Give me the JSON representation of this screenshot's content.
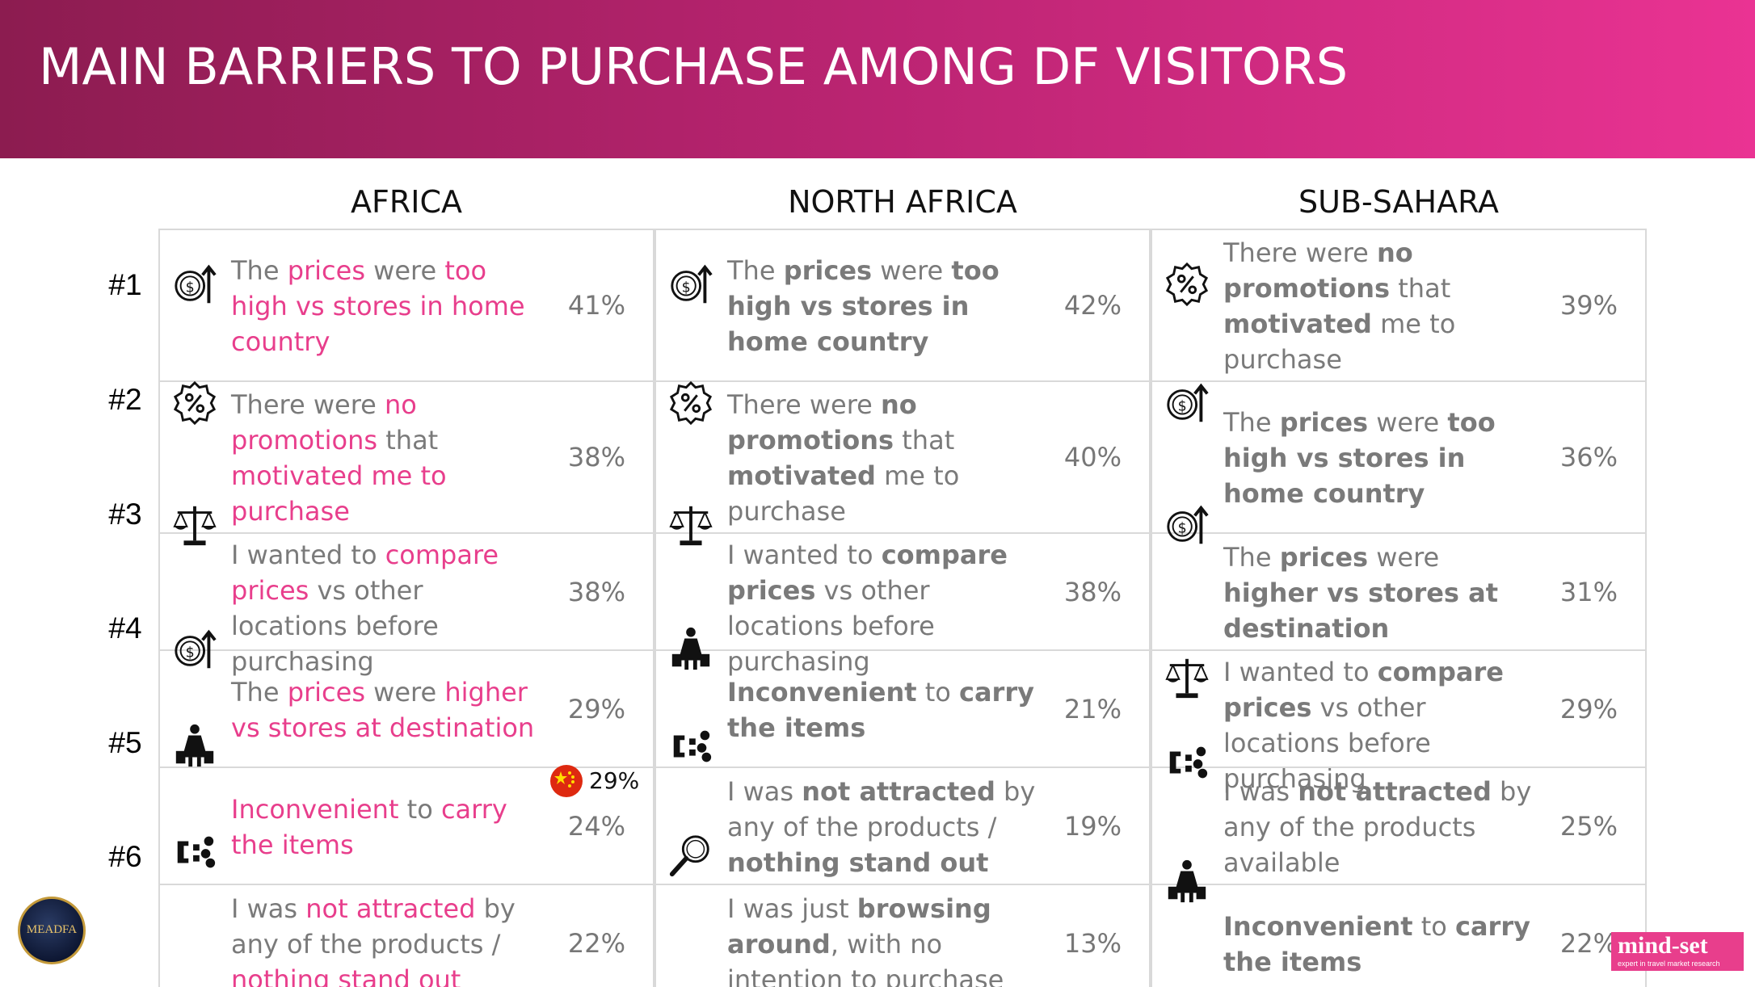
{
  "title": "MAIN BARRIERS TO PURCHASE AMONG DF VISITORS",
  "regions": [
    "AFRICA",
    "NORTH AFRICA",
    "SUB-SAHARA"
  ],
  "ranks": [
    "#1",
    "#2",
    "#3",
    "#4",
    "#5",
    "#6"
  ],
  "columns": [
    {
      "name": "AFRICA",
      "rows": [
        {
          "icon": "price-up-icon",
          "pct": "41%",
          "segments": [
            [
              "The ",
              "n"
            ],
            [
              "prices",
              "h"
            ],
            [
              " were ",
              "n"
            ],
            [
              "too high vs stores in home country",
              "h"
            ]
          ]
        },
        {
          "icon": "promotion-icon",
          "pct": "38%",
          "segments": [
            [
              "There were ",
              "n"
            ],
            [
              "no promotions",
              "h"
            ],
            [
              " that ",
              "n"
            ],
            [
              "motivated",
              "h"
            ],
            [
              " me to purchase",
              "h2"
            ]
          ]
        },
        {
          "icon": "scale-icon",
          "pct": "38%",
          "segments": [
            [
              "I wanted to ",
              "n"
            ],
            [
              "compare prices",
              "h"
            ],
            [
              " vs other locations before purchasing",
              "n"
            ]
          ]
        },
        {
          "icon": "price-up-icon",
          "pct": "29%",
          "segments": [
            [
              "The ",
              "n"
            ],
            [
              "prices",
              "h"
            ],
            [
              " were ",
              "n"
            ],
            [
              "higher vs stores at destination",
              "h"
            ]
          ]
        },
        {
          "icon": "carry-icon",
          "pct": "24%",
          "segments": [
            [
              "Inconvenient",
              "h"
            ],
            [
              " to ",
              "n"
            ],
            [
              "carry the items",
              "h"
            ]
          ]
        },
        {
          "icon": "magnet-icon",
          "pct": "22%",
          "segments": [
            [
              "I was ",
              "n"
            ],
            [
              "not attracted",
              "h"
            ],
            [
              " by any of the products / ",
              "n"
            ],
            [
              "nothing stand out",
              "h"
            ]
          ]
        }
      ]
    },
    {
      "name": "NORTH AFRICA",
      "rows": [
        {
          "icon": "price-up-icon",
          "pct": "42%",
          "segments": [
            [
              "The ",
              "n"
            ],
            [
              "prices",
              "b"
            ],
            [
              " were ",
              "n"
            ],
            [
              "too high vs stores in home country",
              "b"
            ]
          ]
        },
        {
          "icon": "promotion-icon",
          "pct": "40%",
          "segments": [
            [
              "There were ",
              "n"
            ],
            [
              "no promotions",
              "b"
            ],
            [
              " that ",
              "n"
            ],
            [
              "motivated",
              "b"
            ],
            [
              " me to purchase",
              "n"
            ]
          ]
        },
        {
          "icon": "scale-icon",
          "pct": "38%",
          "segments": [
            [
              "I wanted to ",
              "n"
            ],
            [
              "compare prices",
              "b"
            ],
            [
              " vs other locations before purchasing",
              "n"
            ]
          ]
        },
        {
          "icon": "carry-icon",
          "pct": "21%",
          "segments": [
            [
              "Inconvenient",
              "b"
            ],
            [
              " to ",
              "n"
            ],
            [
              "carry the items",
              "b"
            ]
          ]
        },
        {
          "icon": "magnet-icon",
          "pct": "19%",
          "segments": [
            [
              "I was ",
              "n"
            ],
            [
              "not attracted",
              "b"
            ],
            [
              " by any of the products / ",
              "n"
            ],
            [
              "nothing stand out",
              "b"
            ]
          ]
        },
        {
          "icon": "browse-icon",
          "pct": "13%",
          "segments": [
            [
              "I was just ",
              "n"
            ],
            [
              "browsing around",
              "b"
            ],
            [
              ", with no intention to purchase",
              "n"
            ]
          ]
        }
      ]
    },
    {
      "name": "SUB-SAHARA",
      "rows": [
        {
          "icon": "promotion-icon",
          "pct": "39%",
          "segments": [
            [
              "There were ",
              "n"
            ],
            [
              "no promotions",
              "b"
            ],
            [
              " that ",
              "n"
            ],
            [
              "motivated",
              "b"
            ],
            [
              " me to purchase",
              "n"
            ]
          ]
        },
        {
          "icon": "price-up-icon",
          "pct": "36%",
          "segments": [
            [
              "The ",
              "n"
            ],
            [
              "prices",
              "b"
            ],
            [
              " were ",
              "n"
            ],
            [
              "too high vs stores in home country",
              "b"
            ]
          ]
        },
        {
          "icon": "price-up-icon",
          "pct": "31%",
          "segments": [
            [
              "The ",
              "n"
            ],
            [
              "prices",
              "b"
            ],
            [
              " were ",
              "n"
            ],
            [
              "higher vs stores at destination",
              "b"
            ]
          ]
        },
        {
          "icon": "scale-icon",
          "pct": "29%",
          "segments": [
            [
              "I wanted to ",
              "n"
            ],
            [
              "compare prices",
              "b"
            ],
            [
              " vs other locations before purchasing",
              "n"
            ]
          ]
        },
        {
          "icon": "magnet-icon",
          "pct": "25%",
          "segments": [
            [
              "I was ",
              "n"
            ],
            [
              "not attracted",
              "b"
            ],
            [
              " by any of the products available",
              "n"
            ]
          ]
        },
        {
          "icon": "carry-icon",
          "pct": "22%",
          "segments": [
            [
              "Inconvenient",
              "b"
            ],
            [
              " to ",
              "n"
            ],
            [
              "carry the items",
              "b"
            ]
          ]
        }
      ]
    }
  ],
  "china_callout": {
    "icon": "china-flag-icon",
    "pct": "29%"
  },
  "logos": {
    "left": "MEADFA",
    "right": "mind-set",
    "right_tagline": "expert in travel market research"
  },
  "colors": {
    "header_start": "#8c1c50",
    "header_end": "#ea3393",
    "highlight": "#e83e8c",
    "body_text": "#7a7a7a"
  }
}
